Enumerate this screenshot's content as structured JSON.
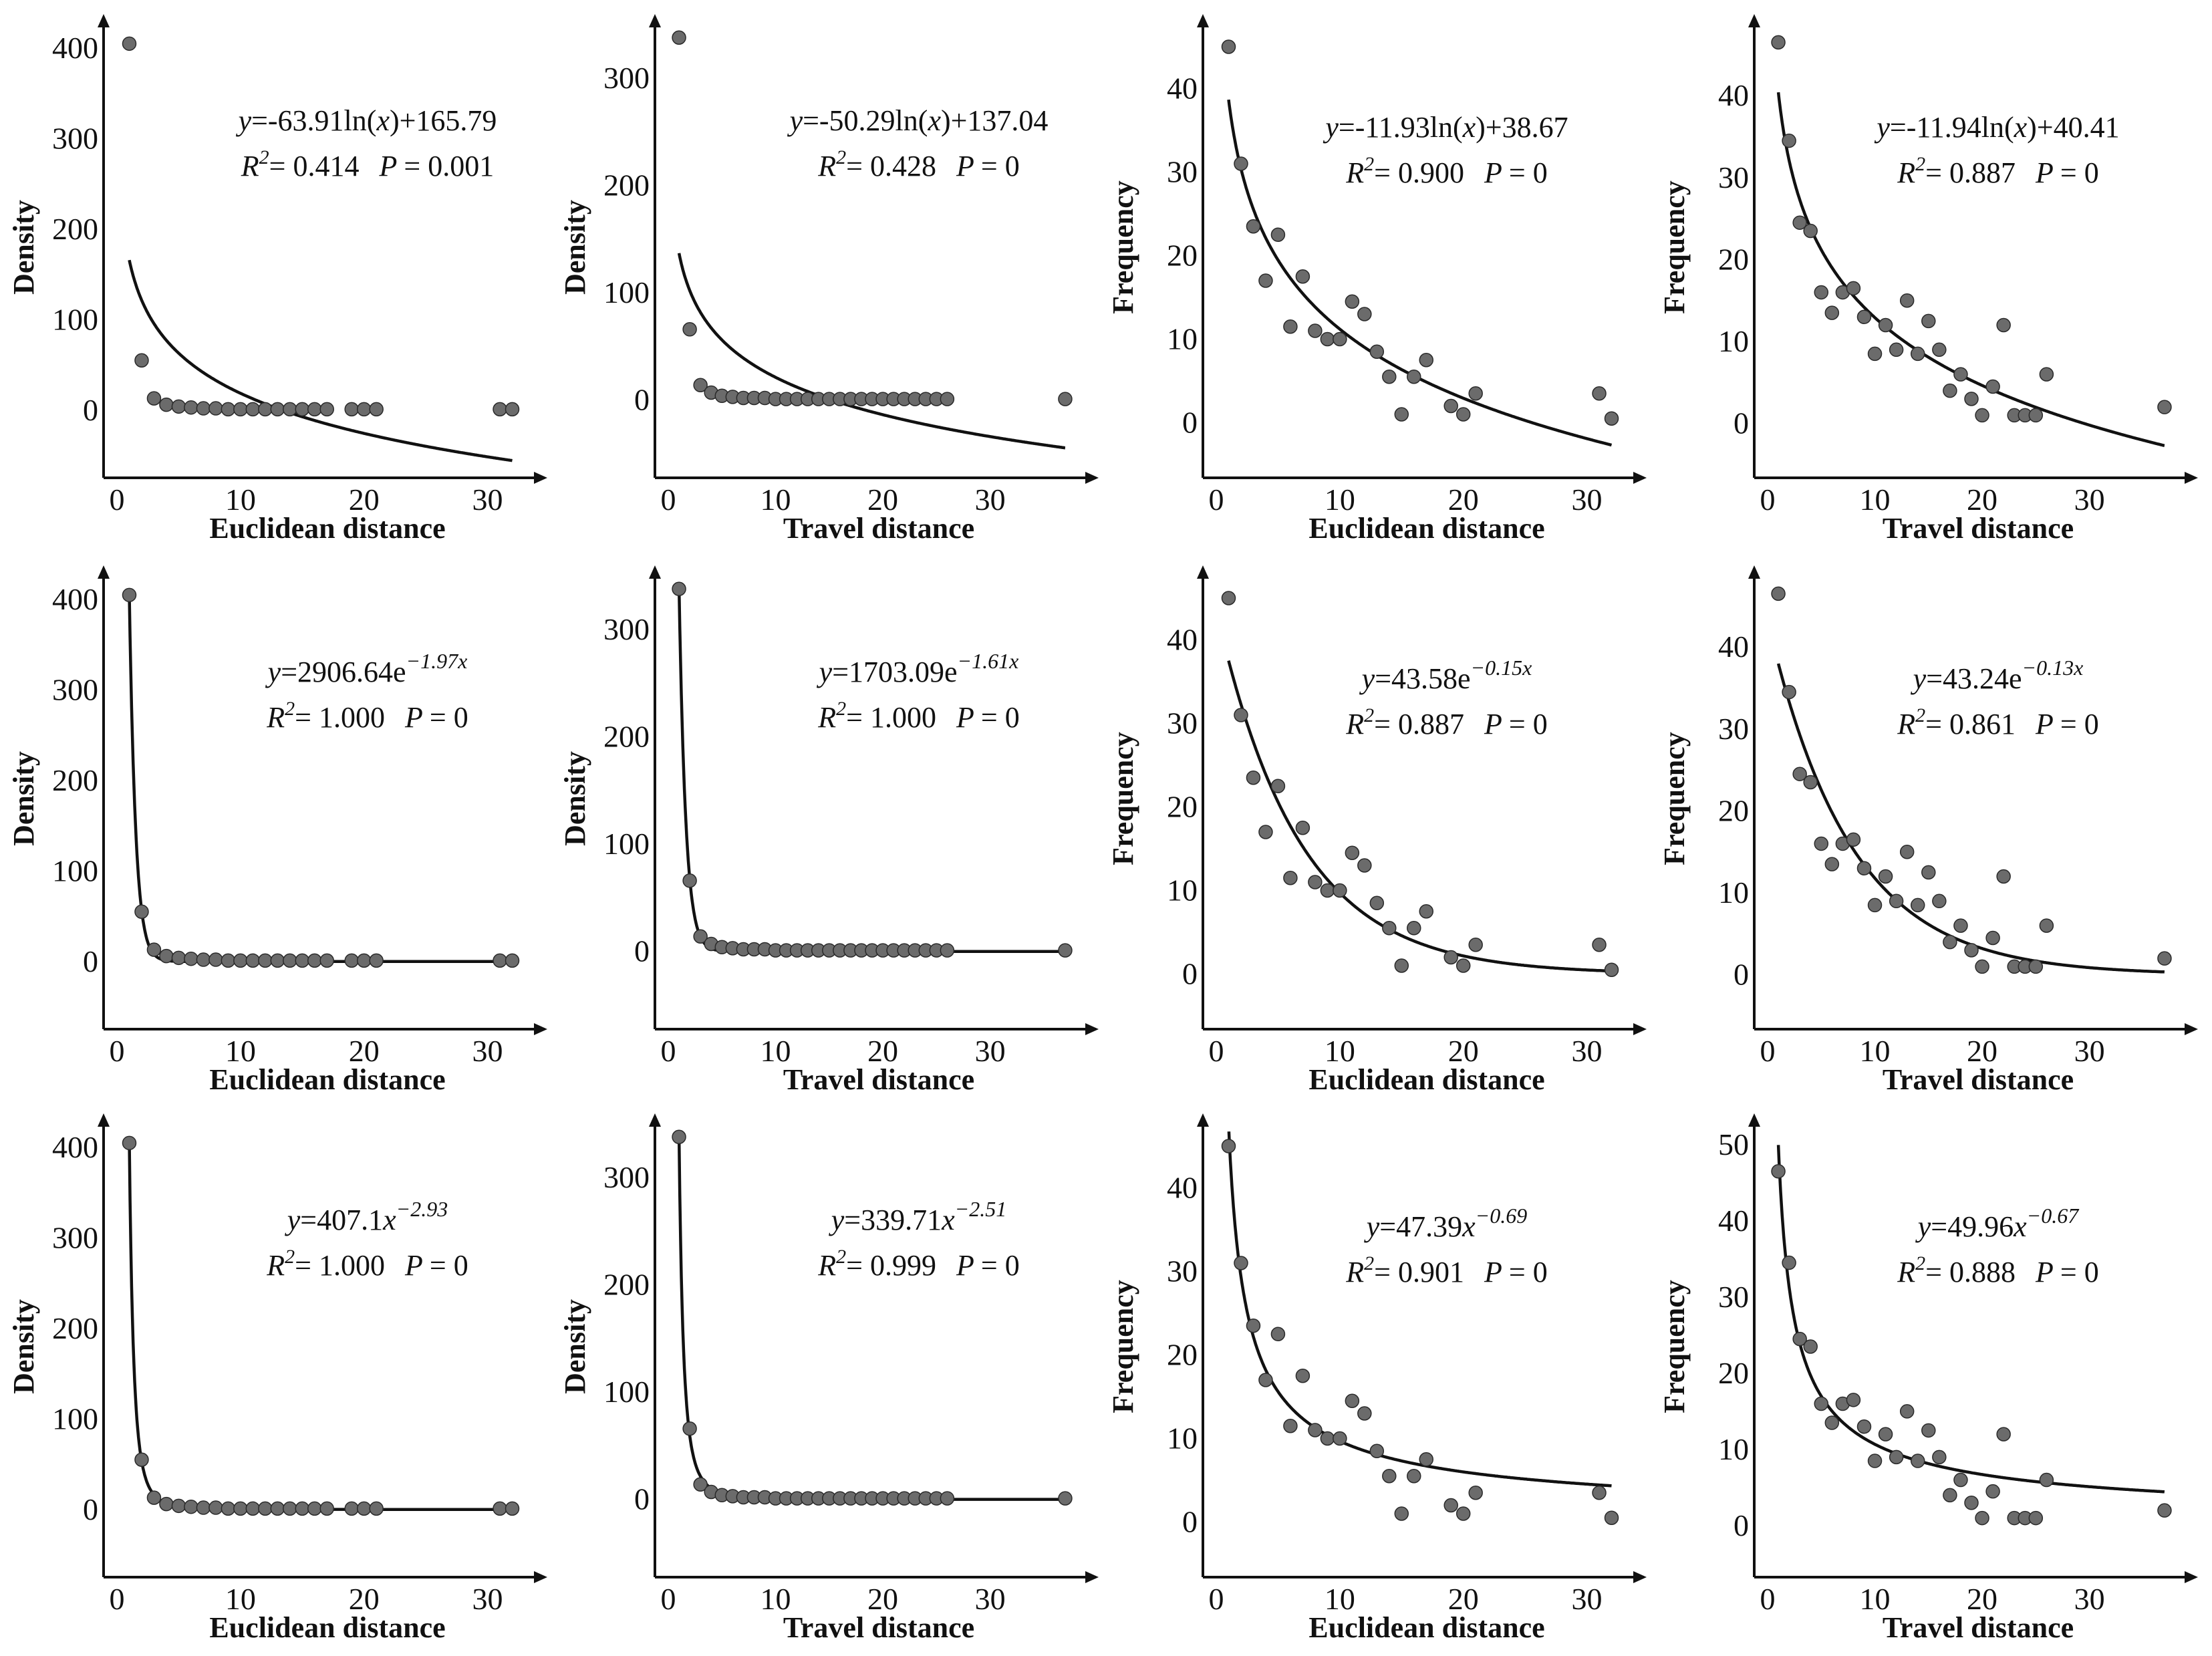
{
  "figure": {
    "rows": [
      {
        "model": "logarithmic",
        "panels": [
          {
            "ylabel": "Density",
            "xlabel": "Euclidean distance",
            "dataset": "density_euclidean",
            "eq_lhs": "y",
            "eq_rhs": "=-63.91ln(",
            "eq_mid": "x",
            "eq_end": ")+165.79",
            "eq_sup": "",
            "r2_label": "R",
            "r2_sq": "2",
            "r2_text": "= 0.414",
            "p_label": "P",
            "p_text": "= 0.001"
          },
          {
            "ylabel": "Density",
            "xlabel": "Travel distance",
            "dataset": "density_travel",
            "eq_lhs": "y",
            "eq_rhs": "=-50.29ln(",
            "eq_mid": "x",
            "eq_end": ")+137.04",
            "eq_sup": "",
            "r2_label": "R",
            "r2_sq": "2",
            "r2_text": "= 0.428",
            "p_label": "P",
            "p_text": "= 0"
          },
          {
            "ylabel": "Frequency",
            "xlabel": "Euclidean distance",
            "dataset": "frequency_euclidean",
            "eq_lhs": "y",
            "eq_rhs": "=-11.93ln(",
            "eq_mid": "x",
            "eq_end": ")+38.67",
            "eq_sup": "",
            "r2_label": "R",
            "r2_sq": "2",
            "r2_text": "= 0.900",
            "p_label": "P",
            "p_text": "= 0"
          },
          {
            "ylabel": "Frequency",
            "xlabel": "Travel distance",
            "dataset": "frequency_travel",
            "eq_lhs": "y",
            "eq_rhs": "=-11.94ln(",
            "eq_mid": "x",
            "eq_end": ")+40.41",
            "eq_sup": "",
            "r2_label": "R",
            "r2_sq": "2",
            "r2_text": "= 0.887",
            "p_label": "P",
            "p_text": "= 0"
          }
        ]
      },
      {
        "model": "exponential",
        "panels": [
          {
            "ylabel": "Density",
            "xlabel": "Euclidean distance",
            "dataset": "density_euclidean",
            "eq_lhs": "y",
            "eq_rhs": "=2906.64e",
            "eq_mid": "",
            "eq_end": "",
            "eq_sup": "−1.97x",
            "r2_label": "R",
            "r2_sq": "2",
            "r2_text": "= 1.000",
            "p_label": "P",
            "p_text": "= 0"
          },
          {
            "ylabel": "Density",
            "xlabel": "Travel distance",
            "dataset": "density_travel",
            "eq_lhs": "y",
            "eq_rhs": "=1703.09e",
            "eq_mid": "",
            "eq_end": "",
            "eq_sup": "−1.61x",
            "r2_label": "R",
            "r2_sq": "2",
            "r2_text": "= 1.000",
            "p_label": "P",
            "p_text": "= 0"
          },
          {
            "ylabel": "Frequency",
            "xlabel": "Euclidean distance",
            "dataset": "frequency_euclidean",
            "eq_lhs": "y",
            "eq_rhs": "=43.58e",
            "eq_mid": "",
            "eq_end": "",
            "eq_sup": "−0.15x",
            "r2_label": "R",
            "r2_sq": "2",
            "r2_text": "= 0.887",
            "p_label": "P",
            "p_text": "= 0"
          },
          {
            "ylabel": "Frequency",
            "xlabel": "Travel distance",
            "dataset": "frequency_travel",
            "eq_lhs": "y",
            "eq_rhs": "=43.24e",
            "eq_mid": "",
            "eq_end": "",
            "eq_sup": "−0.13x",
            "r2_label": "R",
            "r2_sq": "2",
            "r2_text": "= 0.861",
            "p_label": "P",
            "p_text": "= 0"
          }
        ]
      },
      {
        "model": "power",
        "panels": [
          {
            "ylabel": "Density",
            "xlabel": "Euclidean distance",
            "dataset": "density_euclidean",
            "eq_lhs": "y",
            "eq_rhs": "=407.1",
            "eq_mid": "x",
            "eq_end": "",
            "eq_sup": "−2.93",
            "r2_label": "R",
            "r2_sq": "2",
            "r2_text": "= 1.000",
            "p_label": "P",
            "p_text": "= 0"
          },
          {
            "ylabel": "Density",
            "xlabel": "Travel distance",
            "dataset": "density_travel",
            "eq_lhs": "y",
            "eq_rhs": "=339.71",
            "eq_mid": "x",
            "eq_end": "",
            "eq_sup": "−2.51",
            "r2_label": "R",
            "r2_sq": "2",
            "r2_text": "= 0.999",
            "p_label": "P",
            "p_text": "= 0"
          },
          {
            "ylabel": "Frequency",
            "xlabel": "Euclidean distance",
            "dataset": "frequency_euclidean",
            "eq_lhs": "y",
            "eq_rhs": "=47.39",
            "eq_mid": "x",
            "eq_end": "",
            "eq_sup": "−0.69",
            "r2_label": "R",
            "r2_sq": "2",
            "r2_text": "= 0.901",
            "p_label": "P",
            "p_text": "= 0"
          },
          {
            "ylabel": "Frequency",
            "xlabel": "Travel distance",
            "dataset": "frequency_travel",
            "eq_lhs": "y",
            "eq_rhs": "=49.96",
            "eq_mid": "x",
            "eq_end": "",
            "eq_sup": "−0.67",
            "r2_label": "R",
            "r2_sq": "2",
            "r2_text": "= 0.888",
            "p_label": "P",
            "p_text": "= 0"
          }
        ]
      }
    ]
  },
  "chart_data": {
    "type": "scatter",
    "title": "",
    "layout_grid": "3 rows x 4 columns",
    "datasets": {
      "density_euclidean": {
        "xlim": [
          0,
          33
        ],
        "ylim": [
          -60,
          420
        ],
        "xticks": [
          0,
          10,
          20,
          30
        ],
        "yticks": [
          0,
          100,
          200,
          300,
          400
        ],
        "x": [
          1,
          2,
          3,
          4,
          5,
          6,
          7,
          8,
          9,
          10,
          11,
          12,
          13,
          14,
          15,
          16,
          17,
          19,
          20,
          21,
          31,
          32
        ],
        "y": [
          405,
          55,
          13,
          6,
          4,
          3,
          2,
          2,
          1,
          1,
          1,
          1,
          1,
          1,
          1,
          1,
          1,
          1,
          1,
          1,
          1,
          1
        ]
      },
      "density_travel": {
        "xlim": [
          0,
          38
        ],
        "ylim": [
          -60,
          345
        ],
        "xticks": [
          0,
          10,
          20,
          30
        ],
        "yticks": [
          0,
          100,
          200,
          300
        ],
        "x": [
          1,
          2,
          3,
          4,
          5,
          6,
          7,
          8,
          9,
          10,
          11,
          12,
          13,
          14,
          15,
          16,
          17,
          18,
          19,
          20,
          21,
          22,
          23,
          24,
          25,
          26,
          37
        ],
        "y": [
          338,
          66,
          14,
          7,
          4,
          3,
          2,
          2,
          2,
          1,
          1,
          1,
          1,
          1,
          1,
          1,
          1,
          1,
          1,
          1,
          1,
          1,
          1,
          1,
          1,
          1,
          1
        ]
      },
      "frequency_euclidean": {
        "xlim": [
          0,
          33
        ],
        "ylim": [
          -5,
          47
        ],
        "xticks": [
          0,
          10,
          20,
          30
        ],
        "yticks": [
          0,
          10,
          20,
          30,
          40
        ],
        "x": [
          1,
          2,
          3,
          4,
          5,
          6,
          7,
          8,
          9,
          10,
          11,
          12,
          13,
          14,
          15,
          16,
          17,
          19,
          20,
          21,
          31,
          32
        ],
        "y": [
          45,
          31,
          23.5,
          17,
          22.5,
          11.5,
          17.5,
          11,
          10,
          10,
          14.5,
          13,
          8.5,
          5.5,
          1,
          5.5,
          7.5,
          2,
          1,
          3.5,
          3.5,
          0.5
        ]
      },
      "frequency_travel": {
        "xlim": [
          0,
          38
        ],
        "ylim": [
          -5,
          48
        ],
        "xticks": [
          0,
          10,
          20,
          30
        ],
        "yticks": [
          0,
          10,
          20,
          30,
          40
        ],
        "x": [
          1,
          2,
          3,
          4,
          5,
          6,
          7,
          8,
          9,
          10,
          11,
          12,
          13,
          14,
          15,
          16,
          17,
          18,
          19,
          20,
          21,
          22,
          23,
          24,
          25,
          26,
          37
        ],
        "y": [
          46.5,
          34.5,
          24.5,
          23.5,
          16,
          13.5,
          16,
          16.5,
          13,
          8.5,
          12,
          9,
          15,
          8.5,
          12.5,
          9,
          4,
          6,
          3,
          1,
          4.5,
          12,
          1,
          1,
          1,
          6,
          2
        ]
      }
    },
    "fits": {
      "logarithmic": {
        "density_euclidean": {
          "a": -63.91,
          "b": 165.79
        },
        "density_travel": {
          "a": -50.29,
          "b": 137.04
        },
        "frequency_euclidean": {
          "a": -11.93,
          "b": 38.67
        },
        "frequency_travel": {
          "a": -11.94,
          "b": 40.41
        }
      },
      "exponential": {
        "density_euclidean": {
          "a": 2906.64,
          "b": -1.97
        },
        "density_travel": {
          "a": 1703.09,
          "b": -1.61
        },
        "frequency_euclidean": {
          "a": 43.58,
          "b": -0.15
        },
        "frequency_travel": {
          "a": 43.24,
          "b": -0.13
        }
      },
      "power": {
        "density_euclidean": {
          "a": 407.1,
          "b": -2.93
        },
        "density_travel": {
          "a": 339.71,
          "b": -2.51
        },
        "frequency_euclidean": {
          "a": 47.39,
          "b": -0.69
        },
        "frequency_travel": {
          "a": 49.96,
          "b": -0.67
        }
      }
    },
    "overrides": {
      "power_frequency_travel_ylim": [
        -5,
        52
      ],
      "power_frequency_travel_yticks": [
        0,
        10,
        20,
        30,
        40,
        50
      ]
    }
  }
}
